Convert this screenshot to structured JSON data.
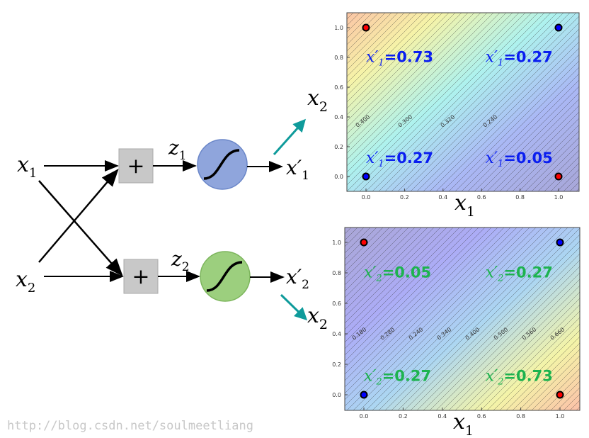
{
  "network": {
    "inputs": [
      {
        "var": "x",
        "sub": "1"
      },
      {
        "var": "x",
        "sub": "2"
      }
    ],
    "sum_symbol": "+",
    "pre_activations": [
      {
        "var": "z",
        "sub": "1"
      },
      {
        "var": "z",
        "sub": "2"
      }
    ],
    "outputs": [
      {
        "var": "x′",
        "sub": "1"
      },
      {
        "var": "x′",
        "sub": "2"
      }
    ],
    "neuron_colors": [
      "#8fa5dc",
      "#9ccf7e"
    ],
    "arrow_color": "#0f9b9b"
  },
  "plots": [
    {
      "xlabel": {
        "var": "x",
        "sub": "1"
      },
      "ylabel": {
        "var": "x",
        "sub": "2"
      },
      "xticks": [
        "0.0",
        "0.2",
        "0.4",
        "0.6",
        "0.8",
        "1.0"
      ],
      "yticks": [
        "0.0",
        "0.2",
        "0.4",
        "0.6",
        "0.8",
        "1.0"
      ],
      "xlim": [
        -0.1,
        1.1
      ],
      "ylim": [
        -0.1,
        1.1
      ],
      "colormap": "high at top-left (orange), low at bottom-right (purple)",
      "contour_labels": [
        "0.400",
        "0.300",
        "0.320",
        "0.240"
      ],
      "points": [
        {
          "x": 0,
          "y": 1,
          "color": "#ff0000"
        },
        {
          "x": 1,
          "y": 1,
          "color": "#0000ff"
        },
        {
          "x": 0,
          "y": 0,
          "color": "#0000ff"
        },
        {
          "x": 1,
          "y": 0,
          "color": "#ff0000"
        }
      ],
      "value_color": "#0a1ef0",
      "annotations": [
        {
          "var": "x′",
          "sub": "1",
          "value": "=0.73"
        },
        {
          "var": "x′",
          "sub": "1",
          "value": "=0.27"
        },
        {
          "var": "x′",
          "sub": "1",
          "value": "=0.27"
        },
        {
          "var": "x′",
          "sub": "1",
          "value": "=0.05"
        }
      ]
    },
    {
      "xlabel": {
        "var": "x",
        "sub": "1"
      },
      "ylabel": {
        "var": "x",
        "sub": "2"
      },
      "xticks": [
        "0.0",
        "0.2",
        "0.4",
        "0.6",
        "0.8",
        "1.0"
      ],
      "yticks": [
        "0.0",
        "0.2",
        "0.4",
        "0.6",
        "0.8",
        "1.0"
      ],
      "xlim": [
        -0.1,
        1.1
      ],
      "ylim": [
        -0.1,
        1.1
      ],
      "colormap": "low at top-left (purple), high at bottom-right (orange)",
      "contour_labels": [
        "0.180",
        "0.280",
        "0.240",
        "0.340",
        "0.400",
        "0.500",
        "0.560",
        "0.660"
      ],
      "points": [
        {
          "x": 0,
          "y": 1,
          "color": "#ff0000"
        },
        {
          "x": 1,
          "y": 1,
          "color": "#0000ff"
        },
        {
          "x": 0,
          "y": 0,
          "color": "#0000ff"
        },
        {
          "x": 1,
          "y": 0,
          "color": "#ff0000"
        }
      ],
      "value_color": "#1db34f",
      "annotations": [
        {
          "var": "x′",
          "sub": "2",
          "value": "=0.05"
        },
        {
          "var": "x′",
          "sub": "2",
          "value": "=0.27"
        },
        {
          "var": "x′",
          "sub": "2",
          "value": "=0.27"
        },
        {
          "var": "x′",
          "sub": "2",
          "value": "=0.73"
        }
      ]
    }
  ],
  "watermark": "http://blog.csdn.net/soulmeetliang"
}
